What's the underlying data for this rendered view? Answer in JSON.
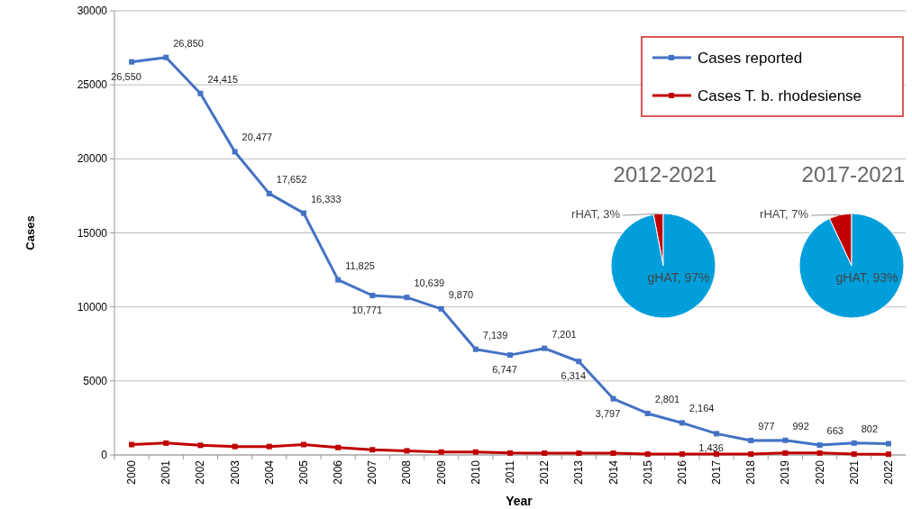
{
  "chart_data": [
    {
      "type": "line",
      "xlabel": "Year",
      "ylabel": "Cases",
      "categories": [
        "2000",
        "2001",
        "2002",
        "2003",
        "2004",
        "2005",
        "2006",
        "2007",
        "2008",
        "2009",
        "2010",
        "2011",
        "2012",
        "2013",
        "2014",
        "2015",
        "2016",
        "2017",
        "2018",
        "2019",
        "2020",
        "2021",
        "2022"
      ],
      "series": [
        {
          "name": "Cases reported",
          "color": "#4472c4",
          "values": [
            26550,
            26850,
            24415,
            20477,
            17652,
            16333,
            11825,
            10771,
            10639,
            9870,
            7139,
            6747,
            7201,
            6314,
            3797,
            2801,
            2164,
            1436,
            977,
            992,
            663,
            802,
            760
          ],
          "value_labels": [
            "26,550",
            "26,850",
            "24,415",
            "20,477",
            "17,652",
            "16,333",
            "11,825",
            "10,771",
            "10,639",
            "9,870",
            "7,139",
            "6,747",
            "7,201",
            "6,314",
            "3,797",
            "2,801",
            "2,164",
            "1,436",
            "977",
            "992",
            "663",
            "802",
            null
          ]
        },
        {
          "name": "Cases T. b. rhodesiense",
          "color": "#c00000",
          "values": [
            700,
            800,
            650,
            570,
            570,
            700,
            500,
            350,
            280,
            200,
            200,
            130,
            120,
            120,
            120,
            60,
            60,
            60,
            60,
            130,
            130,
            60,
            50
          ]
        }
      ],
      "ylim": [
        0,
        30000
      ],
      "yticks": [
        0,
        5000,
        10000,
        15000,
        20000,
        25000,
        30000
      ],
      "grid": "y",
      "legend": "top right",
      "marker": "square"
    },
    {
      "type": "pie",
      "title": "2012-2021",
      "categories": [
        "rHAT",
        "gHAT"
      ],
      "values": [
        3,
        97
      ],
      "value_labels": [
        "3%",
        "97%"
      ],
      "colors": [
        "#c00000",
        "#009fdc"
      ]
    },
    {
      "type": "pie",
      "title": "2017-2021",
      "categories": [
        "rHAT",
        "gHAT"
      ],
      "values": [
        7,
        93
      ],
      "value_labels": [
        "7%",
        "93%"
      ],
      "colors": [
        "#c00000",
        "#009fdc"
      ]
    }
  ]
}
